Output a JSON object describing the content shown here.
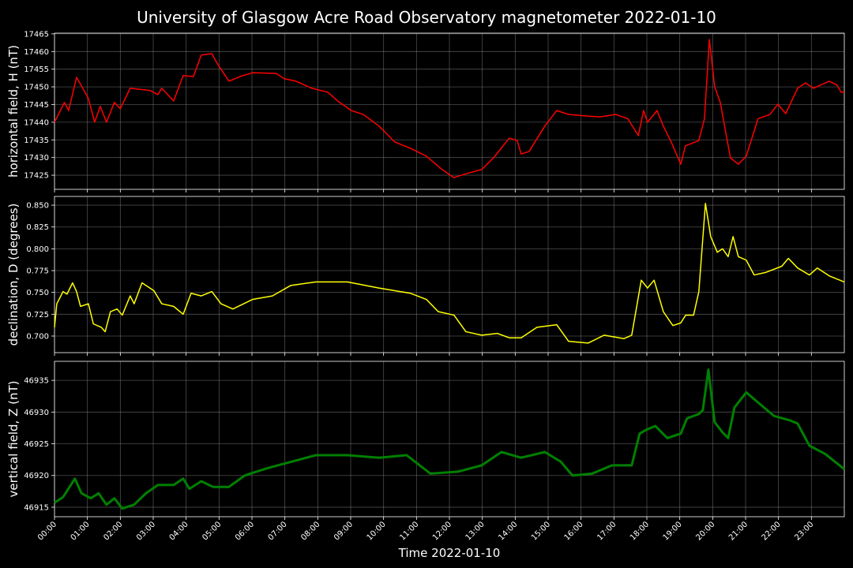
{
  "title": "University of Glasgow Acre Road Observatory magnetometer 2022-01-10",
  "chart_data": [
    {
      "type": "line",
      "ylabel": "horizontal field, H (nT)",
      "color": "#ff0000",
      "grid": true,
      "xlim": [
        0,
        24
      ],
      "ylim": [
        17421,
        17465.2
      ],
      "yticks": [
        17425,
        17430,
        17435,
        17440,
        17445,
        17450,
        17455,
        17460,
        17465
      ],
      "x": [
        0,
        0.3,
        0.43,
        0.67,
        0.86,
        1.03,
        1.22,
        1.39,
        1.58,
        1.82,
        2.0,
        2.3,
        2.9,
        3.14,
        3.26,
        3.62,
        3.91,
        4.22,
        4.46,
        4.78,
        4.94,
        5.3,
        5.66,
        6.02,
        6.74,
        6.98,
        7.34,
        7.82,
        8.3,
        8.66,
        9.02,
        9.38,
        9.86,
        10.34,
        10.82,
        11.3,
        11.78,
        12.14,
        12.5,
        12.98,
        13.34,
        13.82,
        14.06,
        14.18,
        14.42,
        14.9,
        15.26,
        15.62,
        16.1,
        16.58,
        17.06,
        17.42,
        17.74,
        17.9,
        18.02,
        18.31,
        18.5,
        18.74,
        19.03,
        19.17,
        19.58,
        19.75,
        19.9,
        20.06,
        20.23,
        20.54,
        20.78,
        21.02,
        21.38,
        21.74,
        21.98,
        22.22,
        22.58,
        22.82,
        23.06,
        23.54,
        23.78,
        23.9,
        24
      ],
      "values": [
        17440,
        17445.6,
        17443.3,
        17452.7,
        17449.6,
        17446.7,
        17440,
        17444.5,
        17440,
        17445.6,
        17443.8,
        17449.6,
        17449,
        17447.8,
        17449.6,
        17446,
        17453.2,
        17452.9,
        17459,
        17459.4,
        17456.7,
        17451.6,
        17453,
        17454,
        17453.8,
        17452.3,
        17451.6,
        17449.6,
        17448.5,
        17445.6,
        17443.3,
        17442.2,
        17438.9,
        17434.4,
        17432.6,
        17430.4,
        17426.6,
        17424.3,
        17425.4,
        17426.6,
        17429.9,
        17435.5,
        17434.8,
        17431,
        17431.7,
        17438.9,
        17443.3,
        17442.2,
        17441.8,
        17441.5,
        17442.2,
        17441,
        17436.2,
        17443.3,
        17440,
        17443.3,
        17438.9,
        17434.4,
        17428.1,
        17433.3,
        17434.8,
        17441,
        17463.4,
        17450,
        17445.6,
        17429.9,
        17428.1,
        17430.4,
        17441,
        17442.2,
        17445.1,
        17442.4,
        17449.6,
        17451.1,
        17449.6,
        17451.6,
        17450.5,
        17448.5,
        17448.5
      ]
    },
    {
      "type": "line",
      "ylabel": "declination, D (degrees)",
      "color": "#ffff00",
      "grid": true,
      "xlim": [
        0,
        24
      ],
      "ylim": [
        0.681,
        0.86
      ],
      "yticks": [
        {
          "value": 0.7,
          "label": "0.700"
        },
        0.725,
        {
          "value": 0.75,
          "label": "0.750"
        },
        0.775,
        {
          "value": 0.8,
          "label": "0.800"
        },
        0.825,
        {
          "value": 0.85,
          "label": "0.850"
        }
      ],
      "x": [
        0,
        0.07,
        0.26,
        0.38,
        0.55,
        0.67,
        0.79,
        1.03,
        1.18,
        1.42,
        1.54,
        1.7,
        1.9,
        2.06,
        2.3,
        2.42,
        2.66,
        3.02,
        3.26,
        3.62,
        3.91,
        4.15,
        4.46,
        4.78,
        5.06,
        5.42,
        6.02,
        6.62,
        7.18,
        7.94,
        8.9,
        9.86,
        10.82,
        11.3,
        11.66,
        12.14,
        12.5,
        12.98,
        13.46,
        13.82,
        14.18,
        14.66,
        15.26,
        15.62,
        16.22,
        16.7,
        17.3,
        17.54,
        17.83,
        18.02,
        18.22,
        18.5,
        18.79,
        19.03,
        19.18,
        19.42,
        19.58,
        19.78,
        19.94,
        20.14,
        20.3,
        20.47,
        20.62,
        20.78,
        21.02,
        21.26,
        21.62,
        22.1,
        22.3,
        22.58,
        22.94,
        23.18,
        23.54,
        24
      ],
      "values": [
        0.71,
        0.737,
        0.751,
        0.748,
        0.761,
        0.751,
        0.734,
        0.737,
        0.714,
        0.71,
        0.705,
        0.728,
        0.731,
        0.724,
        0.746,
        0.737,
        0.761,
        0.752,
        0.737,
        0.734,
        0.725,
        0.749,
        0.746,
        0.751,
        0.737,
        0.731,
        0.742,
        0.746,
        0.758,
        0.762,
        0.762,
        0.755,
        0.749,
        0.742,
        0.728,
        0.724,
        0.705,
        0.701,
        0.703,
        0.698,
        0.698,
        0.71,
        0.713,
        0.694,
        0.692,
        0.701,
        0.697,
        0.701,
        0.764,
        0.755,
        0.764,
        0.728,
        0.712,
        0.715,
        0.724,
        0.724,
        0.751,
        0.852,
        0.814,
        0.796,
        0.8,
        0.791,
        0.814,
        0.791,
        0.787,
        0.77,
        0.773,
        0.78,
        0.789,
        0.778,
        0.77,
        0.778,
        0.769,
        0.762
      ]
    },
    {
      "type": "line",
      "ylabel": "vertical field, Z (nT)",
      "xlabel": "Time 2022-01-10",
      "color": "#008000",
      "grid": true,
      "xlim": [
        0,
        24
      ],
      "ylim": [
        46913.5,
        46938
      ],
      "yticks": [
        46915,
        46920,
        46925,
        46930,
        46935
      ],
      "xticks": [
        {
          "value": 0,
          "label": "00:00"
        },
        {
          "value": 1,
          "label": "01:00"
        },
        {
          "value": 2,
          "label": "02:00"
        },
        {
          "value": 3,
          "label": "03:00"
        },
        {
          "value": 4,
          "label": "04:00"
        },
        {
          "value": 5,
          "label": "05:00"
        },
        {
          "value": 6,
          "label": "06:00"
        },
        {
          "value": 7,
          "label": "07:00"
        },
        {
          "value": 8,
          "label": "08:00"
        },
        {
          "value": 9,
          "label": "09:00"
        },
        {
          "value": 10,
          "label": "10:00"
        },
        {
          "value": 11,
          "label": "11:00"
        },
        {
          "value": 12,
          "label": "12:00"
        },
        {
          "value": 13,
          "label": "13:00"
        },
        {
          "value": 14,
          "label": "14:00"
        },
        {
          "value": 15,
          "label": "15:00"
        },
        {
          "value": 16,
          "label": "16:00"
        },
        {
          "value": 17,
          "label": "17:00"
        },
        {
          "value": 18,
          "label": "18:00"
        },
        {
          "value": 19,
          "label": "19:00"
        },
        {
          "value": 20,
          "label": "20:00"
        },
        {
          "value": 21,
          "label": "21:00"
        },
        {
          "value": 22,
          "label": "22:00"
        },
        {
          "value": 23,
          "label": "23:00"
        }
      ],
      "x": [
        0,
        0.26,
        0.62,
        0.82,
        1.1,
        1.34,
        1.58,
        1.82,
        2.06,
        2.42,
        2.78,
        3.14,
        3.62,
        3.91,
        4.1,
        4.46,
        4.82,
        5.3,
        5.78,
        6.5,
        7.22,
        7.94,
        8.9,
        9.86,
        10.7,
        11.42,
        12.26,
        12.98,
        13.58,
        14.18,
        14.9,
        15.38,
        15.74,
        16.34,
        16.94,
        17.54,
        17.78,
        17.98,
        18.26,
        18.62,
        19.03,
        19.22,
        19.58,
        19.7,
        19.87,
        20.06,
        20.3,
        20.47,
        20.66,
        21.02,
        21.38,
        21.86,
        22.34,
        22.58,
        22.94,
        23.42,
        24
      ],
      "values": [
        46915.7,
        46916.6,
        46919.5,
        46917.2,
        46916.4,
        46917.2,
        46915.4,
        46916.4,
        46914.8,
        46915.4,
        46917.2,
        46918.5,
        46918.5,
        46919.5,
        46917.9,
        46919.1,
        46918.2,
        46918.2,
        46920,
        46921.2,
        46922.2,
        46923.2,
        46923.2,
        46922.8,
        46923.2,
        46920.3,
        46920.6,
        46921.6,
        46923.7,
        46922.8,
        46923.7,
        46922.2,
        46920,
        46920.3,
        46921.6,
        46921.6,
        46926.6,
        46927.2,
        46927.8,
        46925.9,
        46926.6,
        46929,
        46929.7,
        46930.3,
        46936.7,
        46928.4,
        46926.8,
        46925.9,
        46930.7,
        46933.1,
        46931.5,
        46929.4,
        46928.7,
        46928.2,
        46924.7,
        46923.4,
        46921
      ]
    }
  ]
}
